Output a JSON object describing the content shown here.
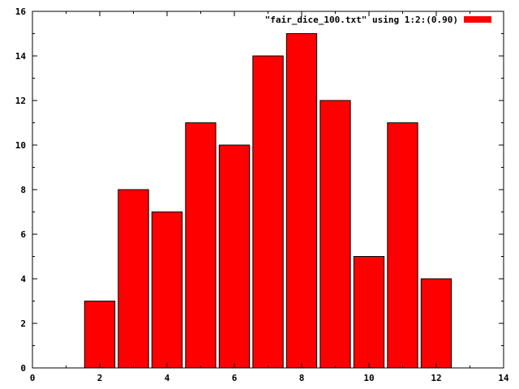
{
  "chart_data": {
    "type": "bar",
    "x": [
      2,
      3,
      4,
      5,
      6,
      7,
      8,
      9,
      10,
      11,
      12
    ],
    "values": [
      3,
      8,
      7,
      11,
      10,
      14,
      15,
      12,
      5,
      11,
      4
    ],
    "bar_width": 0.9,
    "xlim": [
      0,
      14
    ],
    "ylim": [
      0,
      16
    ],
    "xticks": [
      0,
      2,
      4,
      6,
      8,
      10,
      12,
      14
    ],
    "yticks": [
      0,
      2,
      4,
      6,
      8,
      10,
      12,
      14,
      16
    ],
    "grid": false,
    "legend_position": "top-right",
    "series": [
      {
        "name": "\"fair_dice_100.txt\" using 1:2:(0.90)",
        "color": "#ff0000"
      }
    ]
  }
}
